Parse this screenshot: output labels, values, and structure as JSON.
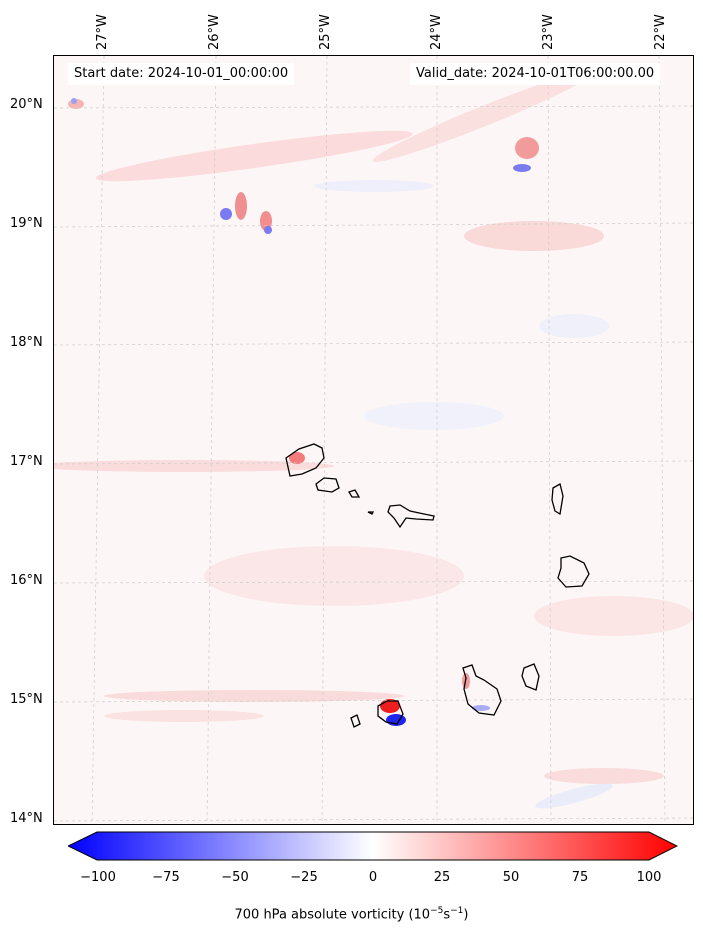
{
  "map": {
    "start_label": "Start date: 2024-10-01_00:00:00",
    "valid_label": "Valid_date: 2024-10-01T06:00:00.00",
    "lon_labels": [
      "27°W",
      "26°W",
      "25°W",
      "24°W",
      "23°W",
      "22°W"
    ],
    "lat_labels": [
      "20°N",
      "19°N",
      "18°N",
      "17°N",
      "16°N",
      "15°N",
      "14°N"
    ]
  },
  "colorbar": {
    "ticks": [
      "−100",
      "−75",
      "−50",
      "−25",
      "0",
      "25",
      "50",
      "75",
      "100"
    ],
    "label": "700 hPa absolute vorticity (10",
    "label_exp1": "−5",
    "label_mid": "s",
    "label_exp2": "−1",
    "label_end": ")",
    "min": -100,
    "max": 100,
    "colors": {
      "low": "#0000ff",
      "mid": "#ffffff",
      "high": "#ff0000"
    }
  }
}
